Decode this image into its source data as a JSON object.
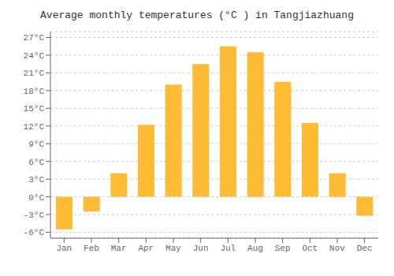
{
  "chart_data": {
    "type": "bar",
    "title": "Average monthly temperatures (°C ) in Tangjiazhuang",
    "categories": [
      "Jan",
      "Feb",
      "Mar",
      "Apr",
      "May",
      "Jun",
      "Jul",
      "Aug",
      "Sep",
      "Oct",
      "Nov",
      "Dec"
    ],
    "values": [
      -5.5,
      -2.5,
      4.0,
      12.2,
      19.0,
      22.5,
      25.5,
      24.5,
      19.5,
      12.5,
      4.0,
      -3.2
    ],
    "color": "#FFBB33",
    "ylim": [
      -7,
      28
    ],
    "yticks": [
      {
        "value": -6,
        "label": "-6°C"
      },
      {
        "value": -3,
        "label": "-3°C"
      },
      {
        "value": 0,
        "label": "0°C"
      },
      {
        "value": 3,
        "label": "3°C"
      },
      {
        "value": 6,
        "label": "6°C"
      },
      {
        "value": 9,
        "label": "9°C"
      },
      {
        "value": 12,
        "label": "12°C"
      },
      {
        "value": 15,
        "label": "15°C"
      },
      {
        "value": 18,
        "label": "18°C"
      },
      {
        "value": 21,
        "label": "21°C"
      },
      {
        "value": 24,
        "label": "24°C"
      },
      {
        "value": 27,
        "label": "27°C"
      }
    ],
    "grid": true
  }
}
